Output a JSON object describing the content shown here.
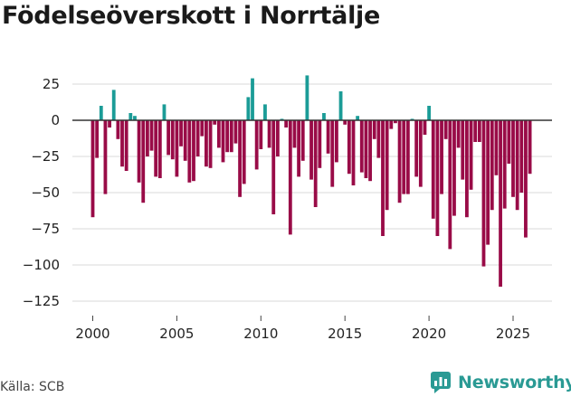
{
  "chart_data": {
    "type": "bar",
    "title": "Födelseöverskott i Norrtälje",
    "xlabel": "",
    "ylabel": "",
    "ylim": [
      -135,
      40
    ],
    "yticks": [
      25,
      0,
      -25,
      -50,
      -75,
      -100,
      -125
    ],
    "ytick_labels": [
      "25",
      "0",
      "−25",
      "−50",
      "−75",
      "−100",
      "−125"
    ],
    "xticks": [
      2000,
      2005,
      2010,
      2015,
      2020,
      2025
    ],
    "xtick_labels": [
      "2000",
      "2005",
      "2010",
      "2015",
      "2020",
      "2025"
    ],
    "x_start": 2000.0,
    "x_step": 0.25,
    "values": [
      -67,
      -26,
      10,
      -51,
      -5,
      21,
      -13,
      -32,
      -35,
      5,
      3,
      -43,
      -57,
      -25,
      -21,
      -39,
      -40,
      11,
      -24,
      -27,
      -39,
      -18,
      -28,
      -43,
      -42,
      -25,
      -11,
      -32,
      -33,
      -3,
      -19,
      -29,
      -22,
      -22,
      -16,
      -53,
      -44,
      16,
      29,
      -34,
      -20,
      11,
      -19,
      -65,
      -25,
      1,
      -5,
      -79,
      -19,
      -39,
      -28,
      31,
      -41,
      -60,
      -33,
      5,
      -23,
      -46,
      -29,
      20,
      -3,
      -37,
      -45,
      3,
      -36,
      -40,
      -42,
      -13,
      -26,
      -80,
      -62,
      -6,
      -2,
      -57,
      -51,
      -51,
      1,
      -39,
      -46,
      -10,
      10,
      -68,
      -80,
      -51,
      -13,
      -89,
      -66,
      -19,
      -41,
      -67,
      -48,
      -15,
      -15,
      -101,
      -86,
      -62,
      -38,
      -115,
      -61,
      -30,
      -53,
      -62,
      -50,
      -81,
      -37
    ],
    "colors": {
      "positive": "#1b9c97",
      "negative": "#990b47",
      "zero_line": "#333333",
      "grid": "#d9d9d9"
    }
  },
  "footer": {
    "source": "Källa: SCB",
    "brand": "Newsworthy",
    "brand_icon": "newsworthy-logo-icon",
    "brand_color": "#2a9a94"
  }
}
